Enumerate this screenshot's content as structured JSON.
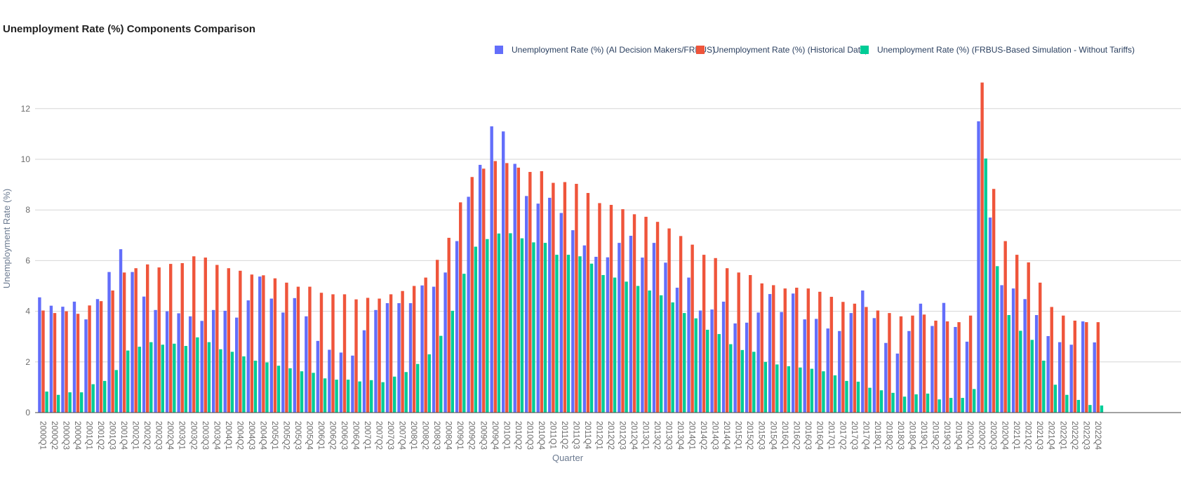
{
  "chart_data": {
    "type": "bar",
    "title": "Unemployment Rate (%) Components Comparison",
    "xlabel": "Quarter",
    "ylabel": "Unemployment Rate (%)",
    "ylim": [
      0,
      13.7
    ],
    "yticks": [
      0,
      2,
      4,
      6,
      8,
      10,
      12
    ],
    "grid": true,
    "legend_position": "top-right",
    "categories": [
      "2000Q1",
      "2000Q2",
      "2000Q3",
      "2000Q4",
      "2001Q1",
      "2001Q2",
      "2001Q3",
      "2001Q4",
      "2002Q1",
      "2002Q2",
      "2002Q3",
      "2002Q4",
      "2003Q1",
      "2003Q2",
      "2003Q3",
      "2003Q4",
      "2004Q1",
      "2004Q2",
      "2004Q3",
      "2004Q4",
      "2005Q1",
      "2005Q2",
      "2005Q3",
      "2005Q4",
      "2006Q1",
      "2006Q2",
      "2006Q3",
      "2006Q4",
      "2007Q1",
      "2007Q2",
      "2007Q3",
      "2007Q4",
      "2008Q1",
      "2008Q2",
      "2008Q3",
      "2008Q4",
      "2009Q1",
      "2009Q2",
      "2009Q3",
      "2009Q4",
      "2010Q1",
      "2010Q2",
      "2010Q3",
      "2010Q4",
      "2011Q1",
      "2011Q2",
      "2011Q3",
      "2011Q4",
      "2012Q1",
      "2012Q2",
      "2012Q3",
      "2012Q4",
      "2013Q1",
      "2013Q2",
      "2013Q3",
      "2013Q4",
      "2014Q1",
      "2014Q2",
      "2014Q3",
      "2014Q4",
      "2015Q1",
      "2015Q2",
      "2015Q3",
      "2015Q4",
      "2016Q1",
      "2016Q2",
      "2016Q3",
      "2016Q4",
      "2017Q1",
      "2017Q2",
      "2017Q3",
      "2017Q4",
      "2018Q1",
      "2018Q2",
      "2018Q3",
      "2018Q4",
      "2019Q1",
      "2019Q2",
      "2019Q3",
      "2019Q4",
      "2020Q1",
      "2020Q2",
      "2020Q3",
      "2020Q4",
      "2021Q1",
      "2021Q2",
      "2021Q3",
      "2021Q4",
      "2022Q1",
      "2022Q2",
      "2022Q3",
      "2022Q4"
    ],
    "series": [
      {
        "name": "Unemployment Rate (%) (AI Decision Makers/FRBUS)",
        "color": "#636efa",
        "values": [
          4.55,
          4.22,
          4.18,
          4.38,
          3.68,
          4.48,
          5.55,
          6.45,
          5.55,
          4.58,
          4.05,
          4.0,
          3.92,
          3.8,
          3.62,
          4.05,
          4.02,
          3.75,
          4.43,
          5.37,
          4.5,
          3.95,
          4.52,
          3.8,
          2.83,
          2.48,
          2.37,
          2.25,
          3.25,
          4.05,
          4.32,
          4.32,
          4.32,
          5.02,
          4.97,
          5.53,
          6.77,
          8.52,
          9.78,
          11.3,
          11.1,
          9.82,
          8.55,
          8.25,
          8.48,
          7.88,
          7.2,
          6.6,
          6.15,
          6.13,
          6.7,
          6.98,
          6.12,
          6.7,
          5.92,
          4.93,
          5.33,
          4.03,
          4.07,
          4.38,
          3.52,
          3.55,
          3.95,
          4.68,
          3.97,
          4.7,
          3.68,
          3.7,
          3.32,
          3.22,
          3.93,
          4.82,
          3.73,
          2.75,
          2.33,
          3.22,
          4.3,
          3.42,
          4.33,
          3.38,
          2.8,
          11.5,
          7.7,
          5.03,
          4.9,
          4.48,
          3.85,
          3.02,
          2.78,
          2.68,
          3.6,
          2.77
        ]
      },
      {
        "name": "Unemployment Rate (%) (Historical Data)",
        "color": "#ef553b",
        "values": [
          4.03,
          3.93,
          4.0,
          3.9,
          4.23,
          4.4,
          4.82,
          5.53,
          5.7,
          5.85,
          5.73,
          5.87,
          5.9,
          6.17,
          6.12,
          5.83,
          5.7,
          5.6,
          5.45,
          5.42,
          5.3,
          5.13,
          4.97,
          4.97,
          4.73,
          4.67,
          4.67,
          4.47,
          4.53,
          4.5,
          4.67,
          4.8,
          5.0,
          5.33,
          6.03,
          6.9,
          8.3,
          9.3,
          9.63,
          9.93,
          9.85,
          9.67,
          9.5,
          9.53,
          9.07,
          9.1,
          9.03,
          8.67,
          8.27,
          8.2,
          8.03,
          7.83,
          7.73,
          7.53,
          7.27,
          6.97,
          6.63,
          6.23,
          6.1,
          5.7,
          5.53,
          5.43,
          5.1,
          5.03,
          4.9,
          4.93,
          4.9,
          4.77,
          4.57,
          4.37,
          4.3,
          4.17,
          4.03,
          3.93,
          3.8,
          3.83,
          3.87,
          3.63,
          3.6,
          3.57,
          3.83,
          13.03,
          8.83,
          6.77,
          6.23,
          5.93,
          5.13,
          4.17,
          3.83,
          3.63,
          3.57,
          3.57
        ]
      },
      {
        "name": "Unemployment Rate (%) (FRBUS-Based Simulation - Without Tariffs)",
        "color": "#00cc96",
        "values": [
          0.83,
          0.7,
          0.8,
          0.8,
          1.12,
          1.25,
          1.68,
          2.45,
          2.6,
          2.78,
          2.68,
          2.72,
          2.63,
          2.97,
          2.78,
          2.5,
          2.4,
          2.22,
          2.05,
          1.98,
          1.85,
          1.75,
          1.63,
          1.57,
          1.35,
          1.3,
          1.3,
          1.23,
          1.28,
          1.2,
          1.42,
          1.6,
          1.92,
          2.3,
          3.03,
          4.02,
          5.48,
          6.55,
          6.85,
          7.07,
          7.08,
          6.88,
          6.72,
          6.7,
          6.23,
          6.23,
          6.17,
          5.88,
          5.43,
          5.33,
          5.17,
          5.0,
          4.82,
          4.63,
          4.35,
          3.93,
          3.72,
          3.27,
          3.1,
          2.7,
          2.47,
          2.4,
          2.0,
          1.9,
          1.83,
          1.78,
          1.73,
          1.63,
          1.47,
          1.25,
          1.22,
          0.98,
          0.88,
          0.78,
          0.63,
          0.72,
          0.75,
          0.52,
          0.58,
          0.58,
          0.93,
          10.03,
          5.78,
          3.85,
          3.23,
          2.87,
          2.05,
          1.1,
          0.7,
          0.5,
          0.3,
          0.28
        ]
      }
    ]
  }
}
